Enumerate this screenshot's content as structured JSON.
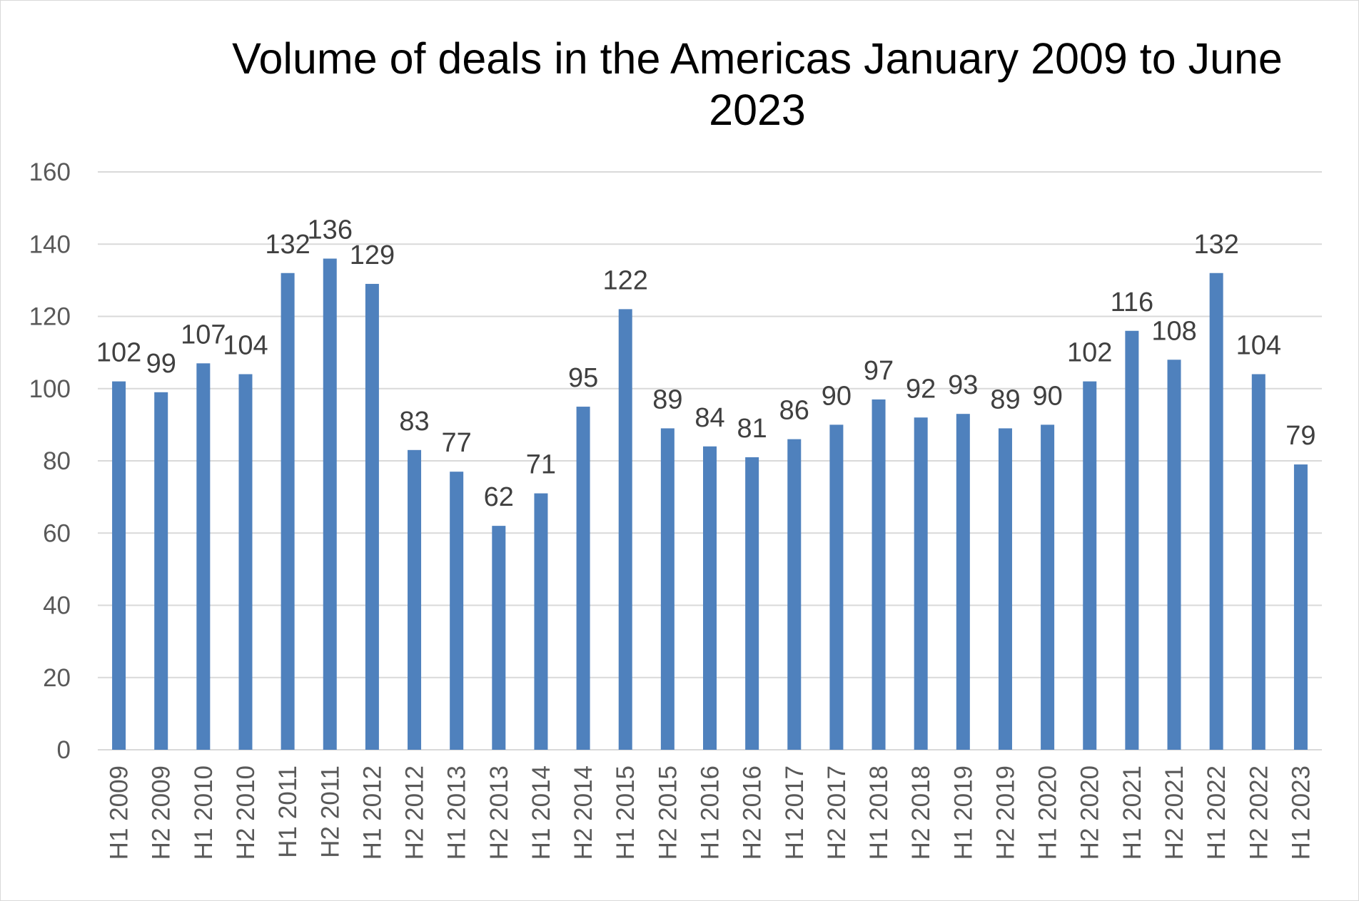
{
  "chart_data": {
    "type": "bar",
    "title": "Volume of deals in the Americas January 2009 to June 2023",
    "xlabel": "",
    "ylabel": "",
    "ylim": [
      0,
      160
    ],
    "yticks": [
      0,
      20,
      40,
      60,
      80,
      100,
      120,
      140,
      160
    ],
    "grid": true,
    "legend": "none",
    "bar_color": "#4F81BD",
    "categories": [
      "H1 2009",
      "H2 2009",
      "H1 2010",
      "H2 2010",
      "H1 2011",
      "H2 2011",
      "H1 2012",
      "H2 2012",
      "H1 2013",
      "H2 2013",
      "H1 2014",
      "H2 2014",
      "H1 2015",
      "H2 2015",
      "H1 2016",
      "H2 2016",
      "H1 2017",
      "H2 2017",
      "H1 2018",
      "H2 2018",
      "H1 2019",
      "H2 2019",
      "H1 2020",
      "H2 2020",
      "H1 2021",
      "H2 2021",
      "H1 2022",
      "H2 2022",
      "H1 2023"
    ],
    "values": [
      102,
      99,
      107,
      104,
      132,
      136,
      129,
      83,
      77,
      62,
      71,
      95,
      122,
      89,
      84,
      81,
      86,
      90,
      97,
      92,
      93,
      89,
      90,
      102,
      116,
      108,
      132,
      104,
      79
    ]
  }
}
